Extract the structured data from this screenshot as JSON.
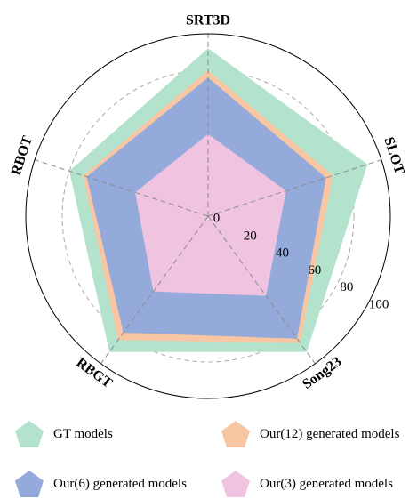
{
  "chart_data": {
    "type": "radar",
    "axes": [
      "SRT3D",
      "SLOT",
      "Song23",
      "RBGT",
      "RBOT"
    ],
    "rlim": [
      0,
      100
    ],
    "ticks": [
      "0",
      "20",
      "40",
      "60",
      "80",
      "100"
    ],
    "tick_values": [
      0,
      20,
      40,
      60,
      80,
      100
    ],
    "grid": true,
    "legend_position": "bottom",
    "series": [
      {
        "name": "GT models",
        "color": "#b3e2cd",
        "values": [
          92,
          92,
          92,
          92,
          80
        ]
      },
      {
        "name": "Our(12) generated models",
        "color": "#f8c6a2",
        "values": [
          80,
          72,
          86,
          84,
          72
        ]
      },
      {
        "name": "Our(6) generated models",
        "color": "#93aadb",
        "values": [
          76,
          68,
          83,
          79,
          70
        ]
      },
      {
        "name": "Our(3) generated models",
        "color": "#f0c4e0",
        "values": [
          45,
          45,
          54,
          51,
          42
        ]
      }
    ]
  }
}
